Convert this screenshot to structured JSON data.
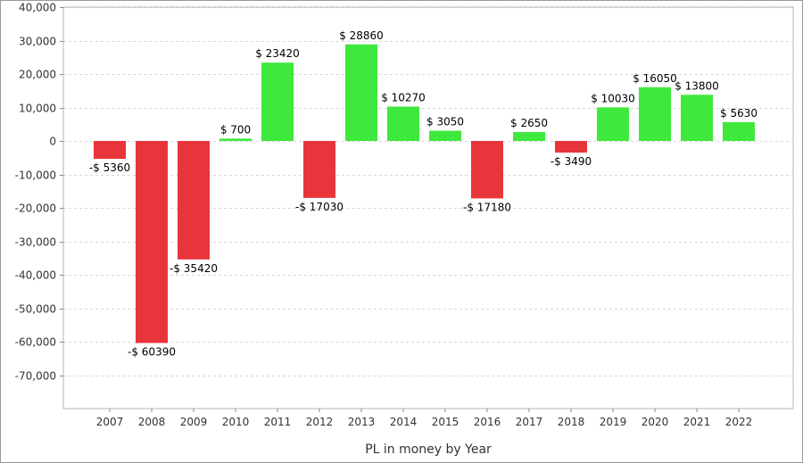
{
  "chart_data": {
    "type": "bar",
    "xlabel": "PL in money by Year",
    "ylabel": "",
    "ylim": [
      -80000,
      40000
    ],
    "y_ticks": [
      40000,
      30000,
      20000,
      10000,
      0,
      -10000,
      -20000,
      -30000,
      -40000,
      -50000,
      -60000,
      -70000
    ],
    "y_tick_labels": [
      "40,000",
      "30,000",
      "20,000",
      "10,000",
      "0",
      "-10,000",
      "-20,000",
      "-30,000",
      "-40,000",
      "-50,000",
      "-60,000",
      "-70,000"
    ],
    "grid": true,
    "categories": [
      "2007",
      "2008",
      "2009",
      "2010",
      "2011",
      "2012",
      "2013",
      "2014",
      "2015",
      "2016",
      "2017",
      "2018",
      "2019",
      "2020",
      "2021",
      "2022"
    ],
    "values": [
      -5360,
      -60390,
      -35420,
      700,
      23420,
      -17030,
      28860,
      10270,
      3050,
      -17180,
      2650,
      -3490,
      10030,
      16050,
      13800,
      5630
    ],
    "data_labels": [
      "-$ 5360",
      "-$ 60390",
      "-$ 35420",
      "$ 700",
      "$ 23420",
      "-$ 17030",
      "$ 28860",
      "$ 10270",
      "$ 3050",
      "-$ 17180",
      "$ 2650",
      "-$ 3490",
      "$ 10030",
      "$ 16050",
      "$ 13800",
      "$ 5630"
    ],
    "colors": {
      "positive": "#3ee83c",
      "negative": "#e8353b"
    }
  }
}
